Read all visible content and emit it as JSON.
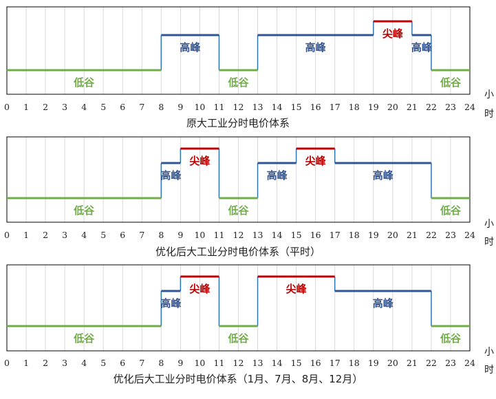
{
  "colors": {
    "低谷": "#70AD47",
    "高峰": "#2F5597",
    "尖峰": "#C00000",
    "connector": "#2E75B6",
    "grid": "#D9D9D9",
    "frame": "#000000"
  },
  "chart_data": [
    {
      "type": "line",
      "title": "原大工业分时电价体系",
      "xlabel": "小时",
      "xlim": [
        0,
        24
      ],
      "x_ticks": [
        "0",
        "1",
        "2",
        "3",
        "4",
        "5",
        "6",
        "7",
        "8",
        "9",
        "10",
        "11",
        "12",
        "13",
        "14",
        "15",
        "16",
        "17",
        "18",
        "19",
        "20",
        "21",
        "22",
        "23",
        "24"
      ],
      "level_order": [
        "低谷",
        "高峰",
        "尖峰"
      ],
      "grid": "vertical",
      "segments": [
        {
          "start": 0,
          "end": 8,
          "period": "低谷"
        },
        {
          "start": 8,
          "end": 11,
          "period": "高峰"
        },
        {
          "start": 11,
          "end": 13,
          "period": "低谷"
        },
        {
          "start": 13,
          "end": 19,
          "period": "高峰"
        },
        {
          "start": 19,
          "end": 21,
          "period": "尖峰"
        },
        {
          "start": 21,
          "end": 22,
          "period": "高峰"
        },
        {
          "start": 22,
          "end": 24,
          "period": "低谷"
        }
      ]
    },
    {
      "type": "line",
      "title": "优化后大工业分时电价体系（平时）",
      "xlabel": "小时",
      "xlim": [
        0,
        24
      ],
      "x_ticks": [
        "0",
        "1",
        "2",
        "3",
        "4",
        "5",
        "6",
        "7",
        "8",
        "9",
        "10",
        "11",
        "12",
        "13",
        "14",
        "15",
        "16",
        "17",
        "18",
        "19",
        "20",
        "21",
        "22",
        "23",
        "24"
      ],
      "level_order": [
        "低谷",
        "高峰",
        "尖峰"
      ],
      "grid": "vertical",
      "segments": [
        {
          "start": 0,
          "end": 8,
          "period": "低谷"
        },
        {
          "start": 8,
          "end": 9,
          "period": "高峰"
        },
        {
          "start": 9,
          "end": 11,
          "period": "尖峰"
        },
        {
          "start": 11,
          "end": 13,
          "period": "低谷"
        },
        {
          "start": 13,
          "end": 15,
          "period": "高峰"
        },
        {
          "start": 15,
          "end": 17,
          "period": "尖峰"
        },
        {
          "start": 17,
          "end": 22,
          "period": "高峰"
        },
        {
          "start": 22,
          "end": 24,
          "period": "低谷"
        }
      ]
    },
    {
      "type": "line",
      "title": "优化后大工业分时电价体系（1月、7月、8月、12月）",
      "xlabel": "小时",
      "xlim": [
        0,
        24
      ],
      "x_ticks": [
        "0",
        "1",
        "2",
        "3",
        "4",
        "5",
        "6",
        "7",
        "8",
        "9",
        "10",
        "11",
        "12",
        "13",
        "14",
        "15",
        "16",
        "17",
        "18",
        "19",
        "20",
        "21",
        "22",
        "23",
        "24"
      ],
      "level_order": [
        "低谷",
        "高峰",
        "尖峰"
      ],
      "grid": "vertical",
      "segments": [
        {
          "start": 0,
          "end": 8,
          "period": "低谷"
        },
        {
          "start": 8,
          "end": 9,
          "period": "高峰"
        },
        {
          "start": 9,
          "end": 11,
          "period": "尖峰"
        },
        {
          "start": 11,
          "end": 13,
          "period": "低谷"
        },
        {
          "start": 13,
          "end": 17,
          "period": "尖峰"
        },
        {
          "start": 17,
          "end": 22,
          "period": "高峰"
        },
        {
          "start": 22,
          "end": 24,
          "period": "低谷"
        }
      ]
    }
  ]
}
